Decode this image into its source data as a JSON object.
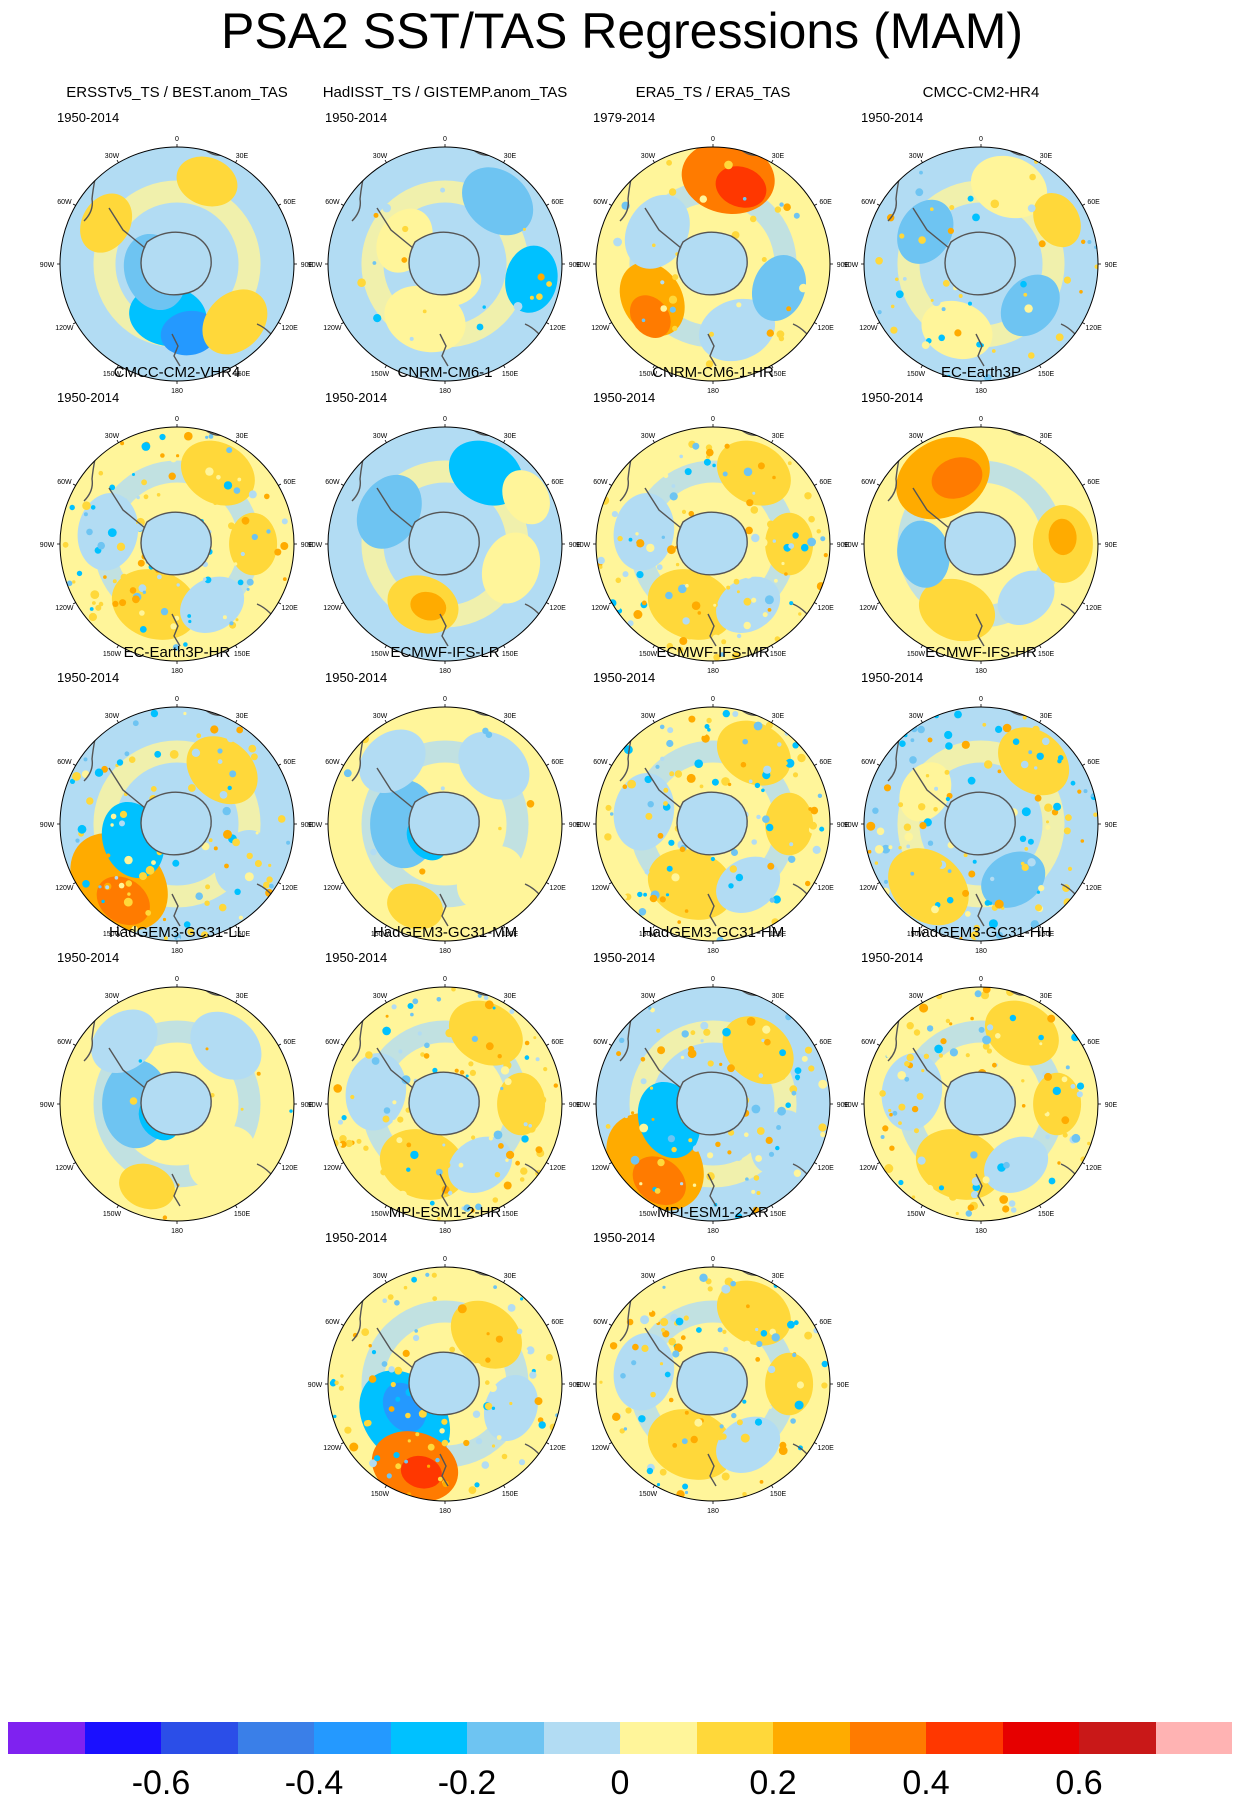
{
  "title": "PSA2 SST/TAS Regressions (MAM)",
  "panels": [
    {
      "title": "ERSSTv5_TS / BEST.anom_TAS",
      "period": "1950-2014",
      "pattern": "smooth-dipole"
    },
    {
      "title": "HadISST_TS / GISTEMP.anom_TAS",
      "period": "1950-2014",
      "pattern": "weak-cool"
    },
    {
      "title": "ERA5_TS / ERA5_TAS",
      "period": "1979-2014",
      "pattern": "warm-west"
    },
    {
      "title": "CMCC-CM2-HR4",
      "period": "1950-2014",
      "pattern": "weak-mixed"
    },
    {
      "title": "CMCC-CM2-VHR4",
      "period": "1950-2014",
      "pattern": "noisy-warm"
    },
    {
      "title": "CNRM-CM6-1",
      "period": "1950-2014",
      "pattern": "smooth-cool"
    },
    {
      "title": "CNRM-CM6-1-HR",
      "period": "1950-2014",
      "pattern": "noisy-warm"
    },
    {
      "title": "EC-Earth3P",
      "period": "1950-2014",
      "pattern": "smooth-warm"
    },
    {
      "title": "EC-Earth3P-HR",
      "period": "1950-2014",
      "pattern": "warm-southwest"
    },
    {
      "title": "ECMWF-IFS-LR",
      "period": "1950-2014",
      "pattern": "smooth-mixed"
    },
    {
      "title": "ECMWF-IFS-MR",
      "period": "1950-2014",
      "pattern": "noisy-warm"
    },
    {
      "title": "ECMWF-IFS-HR",
      "period": "1950-2014",
      "pattern": "noisy-mixed"
    },
    {
      "title": "HadGEM3-GC31-LL",
      "period": "1950-2014",
      "pattern": "smooth-mixed"
    },
    {
      "title": "HadGEM3-GC31-MM",
      "period": "1950-2014",
      "pattern": "noisy-warm"
    },
    {
      "title": "HadGEM3-GC31-HM",
      "period": "1950-2014",
      "pattern": "warm-southwest"
    },
    {
      "title": "HadGEM3-GC31-HH",
      "period": "1950-2014",
      "pattern": "noisy-warm"
    },
    {
      "title": "MPI-ESM1-2-HR",
      "period": "1950-2014",
      "pattern": "warm-south"
    },
    {
      "title": "MPI-ESM1-2-XR",
      "period": "1950-2014",
      "pattern": "noisy-warm"
    }
  ],
  "map_labels": [
    "0",
    "30E",
    "60E",
    "90E",
    "120E",
    "150E",
    "180",
    "150W",
    "120W",
    "90W",
    "60W",
    "30W"
  ],
  "colorbar": {
    "colors": [
      "#7f22f0",
      "#1a10ff",
      "#2b4ee8",
      "#3a7fe8",
      "#2499ff",
      "#00c1ff",
      "#6ec4f2",
      "#b2dcf3",
      "#fff59a",
      "#ffd83a",
      "#ffab00",
      "#ff7b00",
      "#ff3700",
      "#e60000",
      "#c91818",
      "#ffb3b3"
    ],
    "labels": [
      "-0.6",
      "-0.4",
      "-0.2",
      "0",
      "0.2",
      "0.4",
      "0.6"
    ]
  }
}
